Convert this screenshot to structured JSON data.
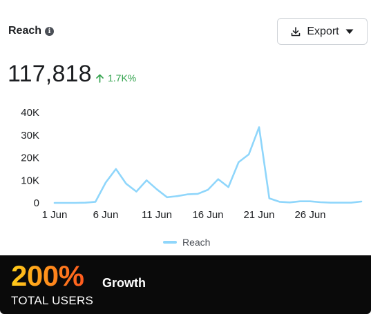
{
  "header": {
    "title": "Reach",
    "info_icon": "info-icon"
  },
  "export_button": {
    "label": "Export",
    "icon": "download-icon",
    "caret_icon": "caret-down-icon"
  },
  "metric": {
    "value": "117,818",
    "delta": "1.7K%",
    "delta_icon": "arrow-up-icon",
    "delta_color": "#31a24c"
  },
  "chart_data": {
    "type": "line",
    "title": "",
    "xlabel": "",
    "ylabel": "",
    "ylim": [
      0,
      40000
    ],
    "yticks": [
      0,
      10000,
      20000,
      30000,
      40000
    ],
    "ytick_labels": [
      "0",
      "10K",
      "20K",
      "30K",
      "40K"
    ],
    "xticks": [
      1,
      6,
      11,
      16,
      21,
      26
    ],
    "xtick_labels": [
      "1 Jun",
      "6 Jun",
      "11 Jun",
      "16 Jun",
      "21 Jun",
      "26 Jun"
    ],
    "grid": false,
    "legend": "bottom-center",
    "series": [
      {
        "name": "Reach",
        "color": "#8fd6fb",
        "x": [
          1,
          2,
          3,
          4,
          5,
          6,
          7,
          8,
          9,
          10,
          11,
          12,
          13,
          14,
          15,
          16,
          17,
          18,
          19,
          20,
          21,
          22,
          23,
          24,
          25,
          26,
          27,
          28,
          29,
          30,
          31
        ],
        "values": [
          0,
          0,
          0,
          100,
          500,
          9000,
          15000,
          8500,
          5000,
          10000,
          6000,
          2500,
          3000,
          3800,
          4000,
          5800,
          10500,
          7000,
          18000,
          21500,
          33500,
          2000,
          500,
          200,
          700,
          700,
          300,
          100,
          100,
          100,
          600
        ]
      }
    ]
  },
  "banner": {
    "percent": "200%",
    "growth": "Growth",
    "subtitle": "TOTAL USERS"
  }
}
